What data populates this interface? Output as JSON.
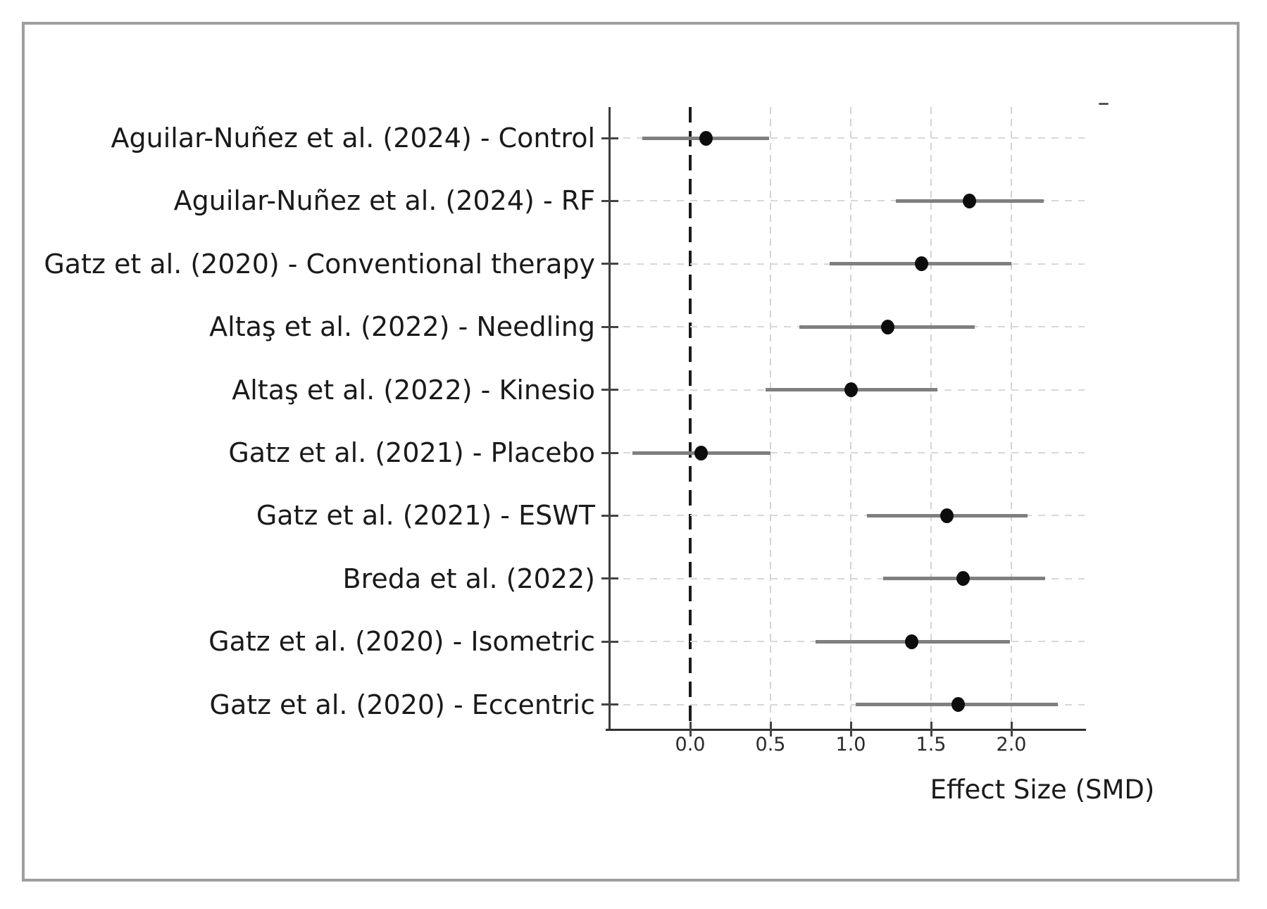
{
  "chart_data": {
    "type": "scatter",
    "subtype": "forest-plot",
    "title": "",
    "xlabel": "Effect Size (SMD)",
    "ylabel": "",
    "xlim": [
      -0.5,
      2.46
    ],
    "x_ticks": [
      0.0,
      0.5,
      1.0,
      1.5,
      2.0
    ],
    "x_tick_labels": [
      "0.0",
      "0.5",
      "1.0",
      "1.5",
      "2.0"
    ],
    "reference_line_x": 0.0,
    "grid": true,
    "legend": null,
    "studies": [
      {
        "label": "Aguilar-Nuñez et al. (2024) - Control",
        "effect": 0.1,
        "ci_low": -0.3,
        "ci_high": 0.49
      },
      {
        "label": "Aguilar-Nuñez et al. (2024) - RF",
        "effect": 1.74,
        "ci_low": 1.28,
        "ci_high": 2.2
      },
      {
        "label": "Gatz et al. (2020) - Conventional therapy",
        "effect": 1.44,
        "ci_low": 0.87,
        "ci_high": 2.0
      },
      {
        "label": "Altaş et al. (2022) - Needling",
        "effect": 1.23,
        "ci_low": 0.68,
        "ci_high": 1.77
      },
      {
        "label": "Altaş et al. (2022) - Kinesio",
        "effect": 1.0,
        "ci_low": 0.47,
        "ci_high": 1.54
      },
      {
        "label": "Gatz et al. (2021) - Placebo",
        "effect": 0.07,
        "ci_low": -0.36,
        "ci_high": 0.5
      },
      {
        "label": "Gatz et al. (2021) - ESWT",
        "effect": 1.6,
        "ci_low": 1.1,
        "ci_high": 2.1
      },
      {
        "label": "Breda et al. (2022)",
        "effect": 1.7,
        "ci_low": 1.2,
        "ci_high": 2.21
      },
      {
        "label": "Gatz et al. (2020) - Isometric",
        "effect": 1.38,
        "ci_low": 0.78,
        "ci_high": 1.99
      },
      {
        "label": "Gatz et al. (2020) - Eccentric",
        "effect": 1.67,
        "ci_low": 1.03,
        "ci_high": 2.29
      }
    ],
    "colors": {
      "point": "#0d0d0d",
      "ci_line": "#7f7f7f",
      "reference_line": "#1a1a1a",
      "gridline": "#d6d6d6",
      "axis": "#3c3c3c",
      "frame_border": "#9e9e9e",
      "text": "#1a1a1a"
    }
  }
}
